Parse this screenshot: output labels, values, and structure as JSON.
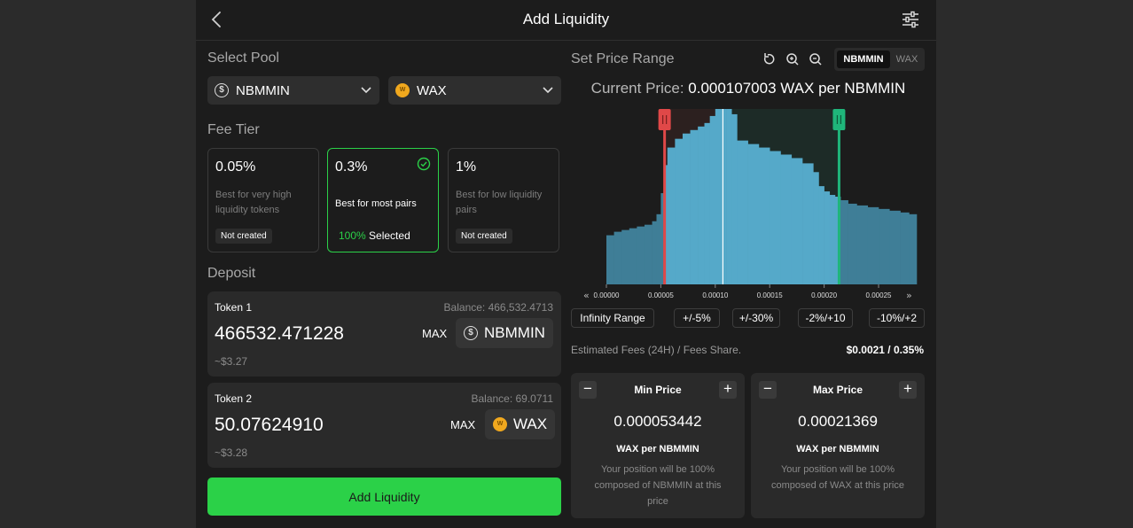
{
  "header": {
    "title": "Add Liquidity"
  },
  "pool": {
    "label": "Select Pool",
    "token_a": "NBMMIN",
    "token_b": "WAX"
  },
  "fee_tier": {
    "label": "Fee Tier",
    "tiers": [
      {
        "pct": "0.05%",
        "desc": "Best for very high liquidity tokens",
        "badge": "Not created"
      },
      {
        "pct": "0.3%",
        "desc": "Best for most pairs",
        "sel_pct": "100%",
        "sel_text": " Selected"
      },
      {
        "pct": "1%",
        "desc": "Best for low liquidity pairs",
        "badge": "Not created"
      }
    ]
  },
  "deposit": {
    "label": "Deposit",
    "token1": {
      "label": "Token 1",
      "balance": "Balance: 466,532.4713",
      "amount": "466532.471228",
      "usd": "~$3.27",
      "max": "MAX",
      "symbol": "NBMMIN"
    },
    "token2": {
      "label": "Token 2",
      "balance": "Balance: 69.0711",
      "amount": "50.07624910",
      "usd": "~$3.28",
      "max": "MAX",
      "symbol": "WAX"
    }
  },
  "add_button": "Add Liquidity",
  "price_range": {
    "label": "Set Price Range",
    "toggle": [
      "NBMMIN",
      "WAX"
    ],
    "current_price_label": "Current Price:",
    "current_price_value": " 0.000107003 WAX per NBMMIN",
    "range_buttons": [
      "Infinity Range",
      "+/-5%",
      "+/-30%",
      "-2%/+10",
      "-10%/+2"
    ],
    "fees_label": "Estimated Fees (24H) / Fees Share.",
    "fees_value": "$0.0021 / 0.35%",
    "min": {
      "title": "Min Price",
      "value": "0.000053442",
      "unit": "WAX per NBMMIN",
      "note": "Your position will be 100% composed of NBMMIN at this price"
    },
    "max": {
      "title": "Max Price",
      "value": "0.00021369",
      "unit": "WAX per NBMMIN",
      "note": "Your position will be 100% composed of WAX at this price"
    }
  },
  "liquidity_chart": {
    "x_ticks": [
      "0.00000",
      "0.00005",
      "0.00010",
      "0.00015",
      "0.00020",
      "0.00025"
    ],
    "x_min": 0.0,
    "x_max": 0.000285,
    "current": 0.000107003,
    "range_min": 5.3442e-05,
    "range_max": 0.00021369,
    "depth": [
      {
        "x": 0.0,
        "y": 0.28
      },
      {
        "x": 7e-06,
        "y": 0.3
      },
      {
        "x": 1.4e-05,
        "y": 0.31
      },
      {
        "x": 2.1e-05,
        "y": 0.32
      },
      {
        "x": 2.8e-05,
        "y": 0.33
      },
      {
        "x": 3.5e-05,
        "y": 0.34
      },
      {
        "x": 4.2e-05,
        "y": 0.36
      },
      {
        "x": 4.6e-05,
        "y": 0.4
      },
      {
        "x": 5e-05,
        "y": 0.52
      },
      {
        "x": 5.3e-05,
        "y": 0.68
      },
      {
        "x": 5.6e-05,
        "y": 0.78
      },
      {
        "x": 6.3e-05,
        "y": 0.83
      },
      {
        "x": 7e-05,
        "y": 0.86
      },
      {
        "x": 7.7e-05,
        "y": 0.88
      },
      {
        "x": 8.4e-05,
        "y": 0.9
      },
      {
        "x": 9e-05,
        "y": 0.92
      },
      {
        "x": 9.5e-05,
        "y": 0.96
      },
      {
        "x": 0.0001,
        "y": 1.0
      },
      {
        "x": 0.00011,
        "y": 1.0
      },
      {
        "x": 0.000115,
        "y": 0.97
      },
      {
        "x": 0.00012,
        "y": 0.82
      },
      {
        "x": 0.00013,
        "y": 0.8
      },
      {
        "x": 0.00014,
        "y": 0.78
      },
      {
        "x": 0.00015,
        "y": 0.76
      },
      {
        "x": 0.00016,
        "y": 0.74
      },
      {
        "x": 0.00017,
        "y": 0.72
      },
      {
        "x": 0.00018,
        "y": 0.69
      },
      {
        "x": 0.00019,
        "y": 0.64
      },
      {
        "x": 0.000195,
        "y": 0.56
      },
      {
        "x": 0.0002,
        "y": 0.53
      },
      {
        "x": 0.000205,
        "y": 0.51
      },
      {
        "x": 0.00021,
        "y": 0.5
      },
      {
        "x": 0.000215,
        "y": 0.48
      },
      {
        "x": 0.000222,
        "y": 0.46
      },
      {
        "x": 0.00023,
        "y": 0.45
      },
      {
        "x": 0.00024,
        "y": 0.44
      },
      {
        "x": 0.00025,
        "y": 0.43
      },
      {
        "x": 0.00026,
        "y": 0.42
      },
      {
        "x": 0.00027,
        "y": 0.41
      },
      {
        "x": 0.000278,
        "y": 0.4
      }
    ]
  }
}
